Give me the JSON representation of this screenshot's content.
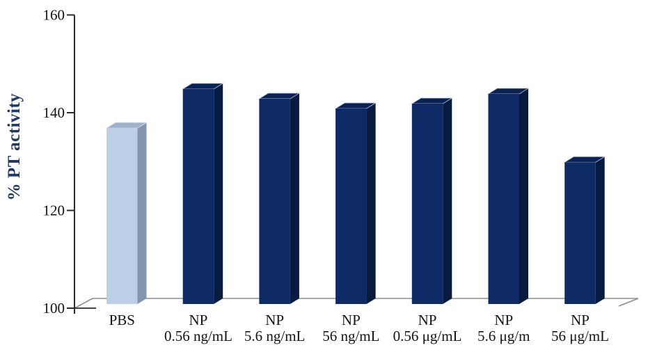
{
  "chart_data": {
    "type": "bar",
    "title": "",
    "xlabel": "",
    "ylabel": "% PT activity",
    "ylim": [
      100,
      160
    ],
    "yticks": [
      100,
      120,
      140,
      160
    ],
    "ytick_labels": [
      "100",
      "120",
      "140",
      "160"
    ],
    "grid": false,
    "legend": "none",
    "style": "3d-bars",
    "bars": [
      {
        "label": "PBS",
        "label_lines": [
          "PBS"
        ],
        "value": 136,
        "series": "control"
      },
      {
        "label": "NP 0.56 ng/mL",
        "label_lines": [
          "NP",
          "0.56 ng/mL"
        ],
        "value": 144,
        "series": "np"
      },
      {
        "label": "NP 5.6 ng/mL",
        "label_lines": [
          "NP",
          "5.6 ng/mL"
        ],
        "value": 142,
        "series": "np"
      },
      {
        "label": "NP 56 ng/mL",
        "label_lines": [
          "NP",
          "56 ng/mL"
        ],
        "value": 140,
        "series": "np"
      },
      {
        "label": "NP 0.56 μg/mL",
        "label_lines": [
          "NP",
          "0.56 μg/mL"
        ],
        "value": 141,
        "series": "np"
      },
      {
        "label": "NP 5.6 μg/m",
        "label_lines": [
          "NP",
          "5.6 μg/m"
        ],
        "value": 143,
        "series": "np"
      },
      {
        "label": "NP 56 μg/mL",
        "label_lines": [
          "NP",
          "56 μg/mL"
        ],
        "value": 129,
        "series": "np"
      }
    ],
    "colors": {
      "control_front": "#bdcfe7",
      "control_top": "#9eb2cb",
      "control_side": "#8496ae",
      "control_edge": "#d7e0ee",
      "np_front": "#0d2a64",
      "np_top": "#0a2154",
      "np_side": "#071a40",
      "np_edge": "#b9c4dc",
      "axis": "#2b2b2b",
      "floor": "#8e8e8e",
      "tick_text": "#141414",
      "category_text": "#141414",
      "ylabel_text": "#1f3864"
    }
  }
}
